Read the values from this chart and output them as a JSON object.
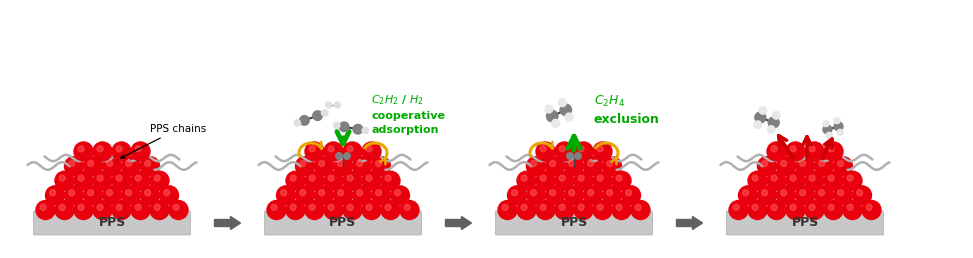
{
  "bg_color": "#ffffff",
  "panel_bg": "#d4d4d4",
  "red_color": "#e8000d",
  "red_dark": "#c00000",
  "gray_color": "#808080",
  "gray_light": "#c8c8c8",
  "gray_dark": "#505050",
  "green_color": "#00aa00",
  "orange_color": "#e6a800",
  "dark_red": "#cc0000",
  "arrow_gray": "#606060",
  "pps_label": "PPS",
  "pps_chains_label": "PPS chains",
  "label2_line1": "$\\mathit{C_2H_2}$ / $\\mathit{H_2}$",
  "label2_line2": "cooperative",
  "label2_line3": "adsorption",
  "label3_line1": "$\\mathit{C_2H_4}$",
  "label3_line2": "exclusion"
}
